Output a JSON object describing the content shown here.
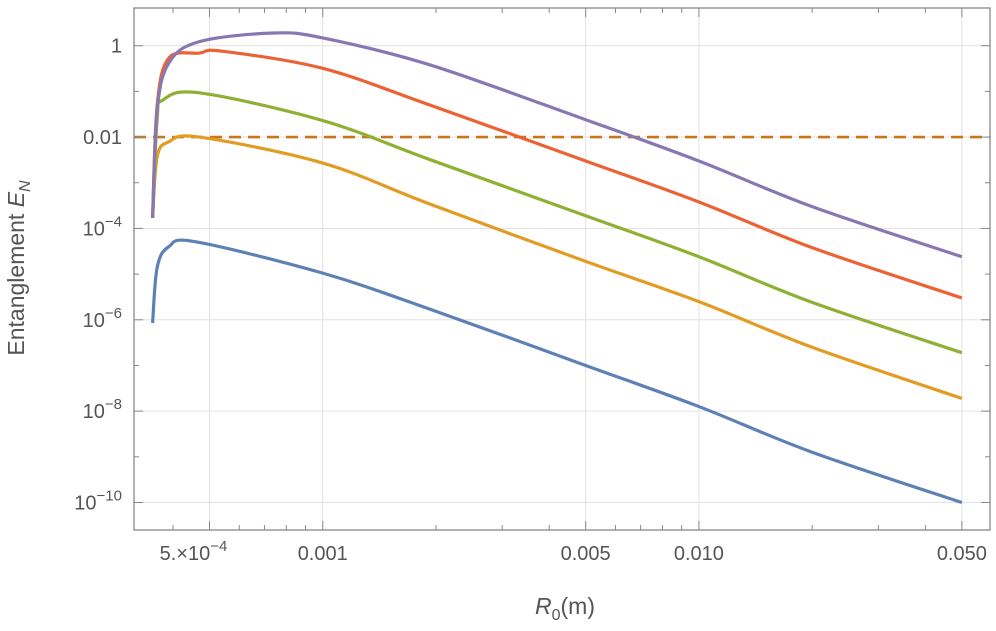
{
  "chart_data": {
    "type": "line",
    "xlabel": "R",
    "xlabel_sub": "0",
    "xlabel_unit": "(m)",
    "ylabel": "Entanglement E",
    "ylabel_sub": "N",
    "xscale": "log",
    "yscale": "log",
    "xlim": [
      0.000315,
      0.0594
    ],
    "ylim": [
      2.5e-11,
      6.7
    ],
    "grid": true,
    "x_ticks": [
      {
        "value": 0.0005,
        "label": "5.×10",
        "exp": "−4"
      },
      {
        "value": 0.001,
        "label": "0.001"
      },
      {
        "value": 0.005,
        "label": "0.005"
      },
      {
        "value": 0.01,
        "label": "0.010"
      },
      {
        "value": 0.05,
        "label": "0.050"
      }
    ],
    "y_ticks": [
      {
        "value": 1,
        "label": "1"
      },
      {
        "value": 0.01,
        "label": "0.01"
      },
      {
        "value": 0.0001,
        "label": "10",
        "exp": "−4"
      },
      {
        "value": 1e-06,
        "label": "10",
        "exp": "−6"
      },
      {
        "value": 1e-08,
        "label": "10",
        "exp": "−8"
      },
      {
        "value": 1e-10,
        "label": "10",
        "exp": "−10"
      }
    ],
    "threshold": {
      "value": 0.01,
      "style": "dashed",
      "color": "#c8761e"
    },
    "series": [
      {
        "color": "#5e81b5",
        "x": [
          0.000353,
          0.000363,
          0.00039,
          0.00046,
          0.001,
          0.00193,
          0.005,
          0.01,
          0.02,
          0.05
        ],
        "y": [
          8.5e-07,
          1.4e-05,
          4e-05,
          5.1e-05,
          1.05e-05,
          1.7e-06,
          1e-07,
          1.26e-08,
          1.26e-09,
          1e-10
        ]
      },
      {
        "color": "#e19c24",
        "x": [
          0.000353,
          0.000363,
          0.00039,
          0.00047,
          0.001,
          0.00193,
          0.005,
          0.01,
          0.02,
          0.05
        ],
        "y": [
          0.00017,
          0.0037,
          0.0079,
          0.01,
          0.0027,
          0.00034,
          1.9e-05,
          2.5e-06,
          2.5e-07,
          1.9e-08
        ]
      },
      {
        "color": "#8fb032",
        "x": [
          0.000353,
          0.000363,
          0.000376,
          0.00047,
          0.001,
          0.00193,
          0.005,
          0.01,
          0.02,
          0.05
        ],
        "y": [
          0.00017,
          0.025,
          0.065,
          0.093,
          0.023,
          0.0032,
          0.00019,
          2.4e-05,
          2.4e-06,
          1.9e-07
        ]
      },
      {
        "color": "#eb6235",
        "x": [
          0.000353,
          0.000363,
          0.00039,
          0.00047,
          0.00054,
          0.001,
          0.00193,
          0.005,
          0.01,
          0.02,
          0.05
        ],
        "y": [
          0.00017,
          0.05,
          0.54,
          0.69,
          0.76,
          0.32,
          0.05,
          0.003,
          0.00038,
          3.8e-05,
          3e-06
        ]
      },
      {
        "color": "#8778b3",
        "x": [
          0.000353,
          0.000363,
          0.00039,
          0.00047,
          0.00074,
          0.001,
          0.00193,
          0.005,
          0.01,
          0.02,
          0.05
        ],
        "y": [
          0.00017,
          0.039,
          0.42,
          1.23,
          1.9,
          1.48,
          0.38,
          0.024,
          0.003,
          0.0003,
          2.4e-05
        ]
      }
    ]
  }
}
